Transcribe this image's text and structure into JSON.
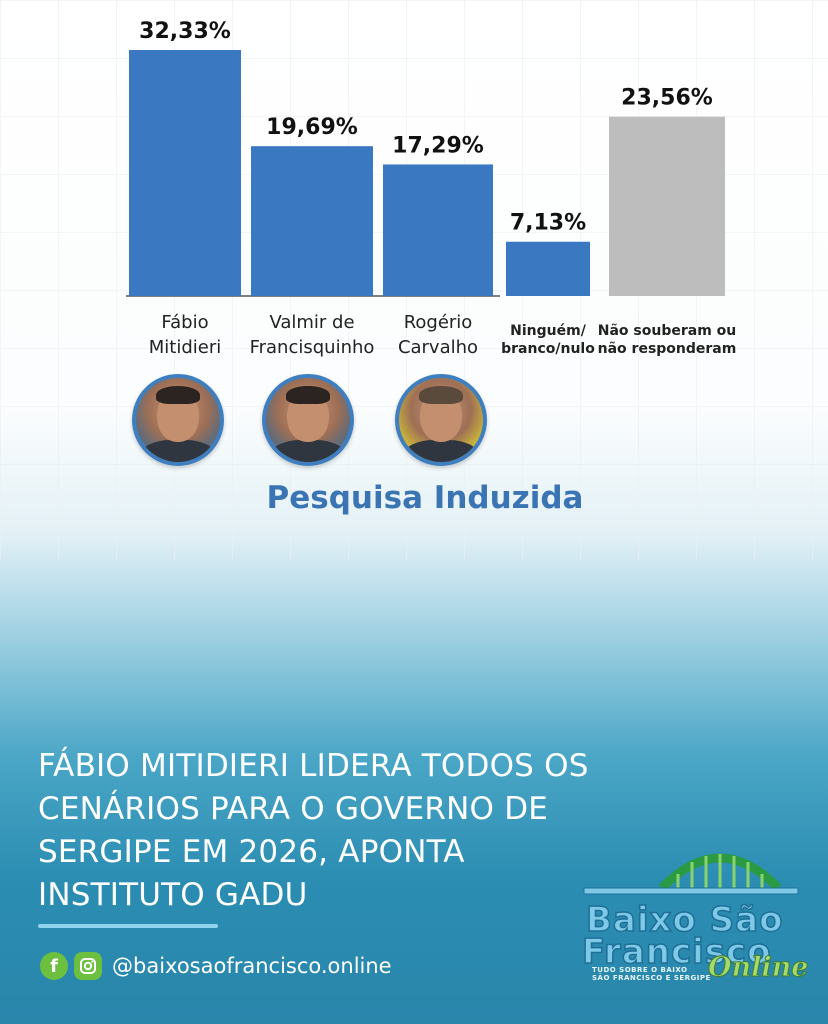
{
  "chart_data": {
    "type": "bar",
    "categories": [
      [
        "Fábio",
        "Mitidieri"
      ],
      [
        "Valmir de",
        "Francisquinho"
      ],
      [
        "Rogério",
        "Carvalho"
      ],
      [
        "Ninguém/",
        "branco/nulo"
      ],
      [
        "Não souberam ou",
        "não responderam"
      ]
    ],
    "values": [
      32.33,
      19.69,
      17.29,
      7.13,
      23.56
    ],
    "value_labels": [
      "32,33%",
      "19,69%",
      "17,29%",
      "7,13%",
      "23,56%"
    ],
    "bar_colors": [
      "#3a78c2",
      "#3a78c2",
      "#3a78c2",
      "#3a78c2",
      "#bdbdbd"
    ],
    "ylim": [
      0,
      33
    ],
    "grid": true
  },
  "subtitle": "Pesquisa Induzida",
  "headline": "FÁBIO MITIDIERI LIDERA TODOS OS CENÁRIOS PARA O GOVERNO DE SERGIPE EM 2026, APONTA INSTITUTO GADU",
  "social": {
    "icons": [
      "facebook-icon",
      "instagram-icon"
    ],
    "handle": "@baixosaofrancisco.online"
  },
  "logo": {
    "line1": "Baixo São",
    "line2": "Francisco",
    "tagline1": "TUDO SOBRE O BAIXO",
    "tagline2": "SÃO FRANCISCO E SERGIPE",
    "script": "Online"
  },
  "colors": {
    "bar": "#3a78c2",
    "bar_other": "#bdbdbd",
    "subtitle": "#3b74b3",
    "accent_green": "#6cbf3f"
  }
}
